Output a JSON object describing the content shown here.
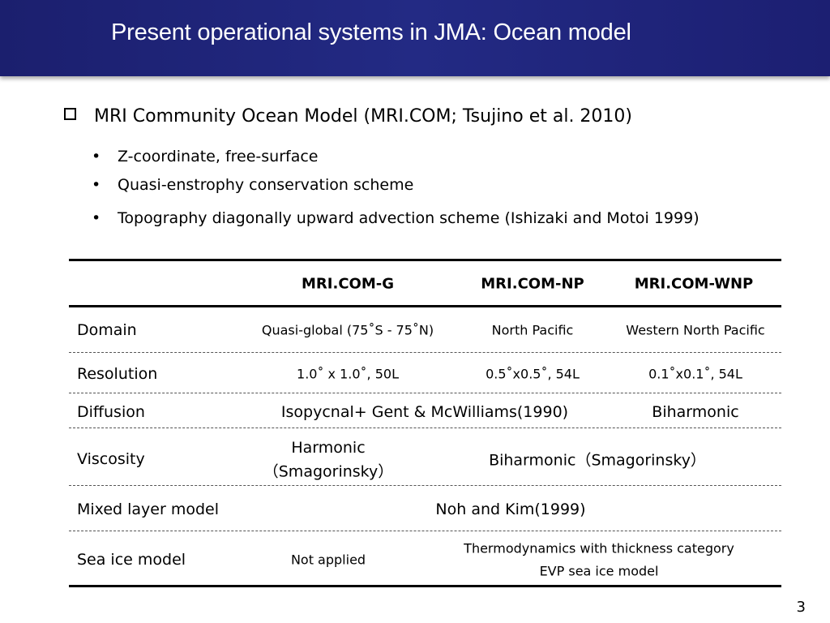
{
  "slide": {
    "title": "Present operational systems in JMA: Ocean model",
    "main_bullet": "MRI Community Ocean Model (MRI.COM; Tsujino et al. 2010)",
    "sub_bullets": [
      "Z-coordinate, free-surface",
      "Quasi-enstrophy conservation scheme",
      "Topography diagonally upward advection scheme (Ishizaki and Motoi 1999)"
    ],
    "page_number": "3"
  },
  "table": {
    "headers": [
      "MRI.COM-G",
      "MRI.COM-NP",
      "MRI.COM-WNP"
    ],
    "rows": {
      "domain": {
        "label": "Domain",
        "g": "Quasi-global (75˚S - 75˚N)",
        "np": "North Pacific",
        "wnp": "Western North Pacific"
      },
      "resolution": {
        "label": "Resolution",
        "g": "1.0˚ x 1.0˚, 50L",
        "np": "0.5˚x0.5˚, 54L",
        "wnp": "0.1˚x0.1˚, 54L"
      },
      "diffusion": {
        "label": "Diffusion",
        "g_np": "Isopycnal+ Gent & McWilliams(1990)",
        "wnp": "Biharmonic"
      },
      "viscosity": {
        "label": "Viscosity",
        "g_line1": "Harmonic",
        "g_line2": "（Smagorinsky）",
        "np_wnp": "Biharmonic（Smagorinsky）"
      },
      "mixed_layer": {
        "label": "Mixed layer model",
        "all": "Noh and Kim(1999)"
      },
      "sea_ice": {
        "label": "Sea ice model",
        "g": "Not applied",
        "np_wnp_line1": "Thermodynamics with thickness category",
        "np_wnp_line2": "EVP sea ice model"
      }
    }
  }
}
